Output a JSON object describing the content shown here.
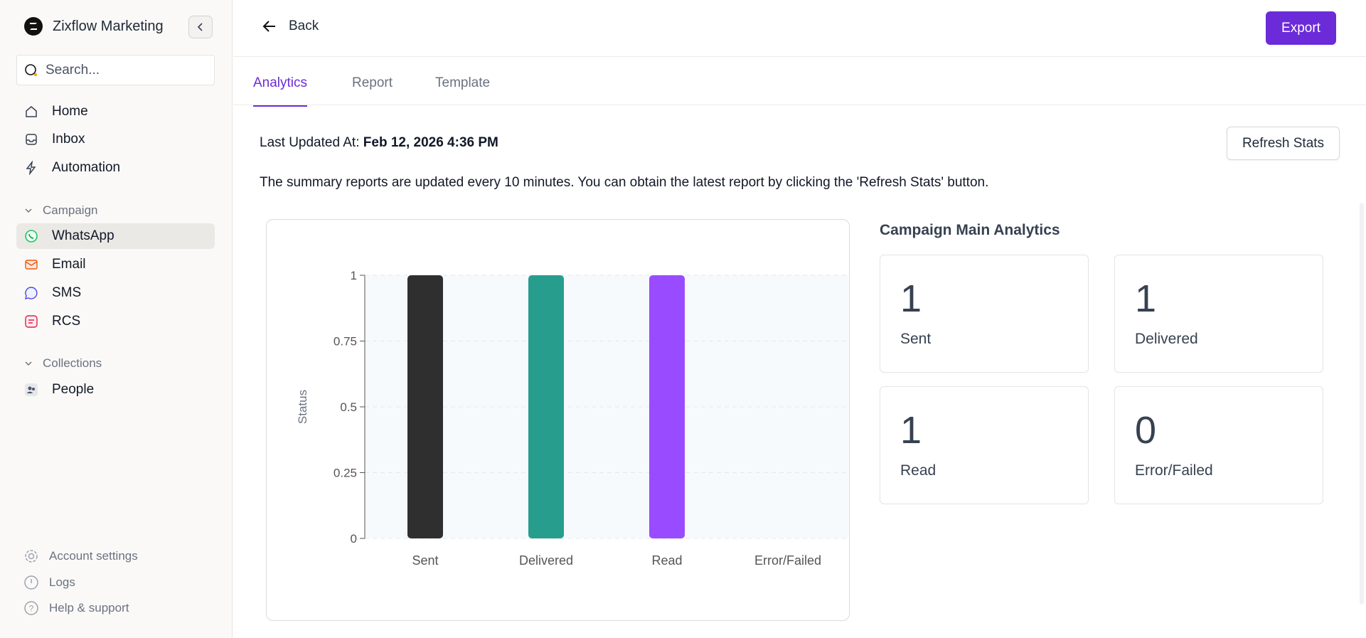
{
  "sidebar": {
    "brand": "Zixflow Marketing",
    "search_placeholder": "Search...",
    "items": [
      {
        "label": "Home",
        "icon": "home-icon"
      },
      {
        "label": "Inbox",
        "icon": "inbox-icon"
      },
      {
        "label": "Automation",
        "icon": "bolt-icon"
      }
    ],
    "campaign_section": "Campaign",
    "campaign_items": [
      {
        "label": "WhatsApp",
        "icon": "whatsapp-icon",
        "active": true
      },
      {
        "label": "Email",
        "icon": "email-icon"
      },
      {
        "label": "SMS",
        "icon": "sms-icon"
      },
      {
        "label": "RCS",
        "icon": "rcs-icon"
      }
    ],
    "collections_section": "Collections",
    "collections_items": [
      {
        "label": "People",
        "icon": "people-icon"
      }
    ],
    "footer": [
      {
        "label": "Account settings",
        "icon": "gear-icon"
      },
      {
        "label": "Logs",
        "icon": "clock-icon"
      },
      {
        "label": "Help & support",
        "icon": "help-icon"
      }
    ]
  },
  "header": {
    "back_label": "Back",
    "export_label": "Export"
  },
  "tabs": [
    {
      "label": "Analytics",
      "active": true
    },
    {
      "label": "Report"
    },
    {
      "label": "Template"
    }
  ],
  "main": {
    "last_updated_prefix": "Last Updated At: ",
    "last_updated_value": "Feb 12, 2026 4:36 PM",
    "refresh_label": "Refresh Stats",
    "summary": "The summary reports are updated every 10 minutes. You can obtain the latest report by clicking the 'Refresh Stats' button."
  },
  "analytics": {
    "title": "Campaign Main Analytics",
    "stats": [
      {
        "value": "1",
        "label": "Sent"
      },
      {
        "value": "1",
        "label": "Delivered"
      },
      {
        "value": "1",
        "label": "Read"
      },
      {
        "value": "0",
        "label": "Error/Failed"
      }
    ]
  },
  "colors": {
    "accent": "#6c2bd9",
    "sent": "#2f2f2f",
    "delivered": "#279d8e",
    "read": "#994cff",
    "plot_bg": "#f7fafd"
  },
  "chart_data": {
    "type": "bar",
    "categories": [
      "Sent",
      "Delivered",
      "Read",
      "Error/Failed"
    ],
    "values": [
      1,
      1,
      1,
      0
    ],
    "colors": [
      "#2f2f2f",
      "#279d8e",
      "#994cff",
      "#ef4444"
    ],
    "ylabel": "Status",
    "ylim": [
      0,
      1
    ],
    "yticks": [
      "0",
      "0.25",
      "0.5",
      "0.75",
      "1"
    ],
    "grid": true
  }
}
